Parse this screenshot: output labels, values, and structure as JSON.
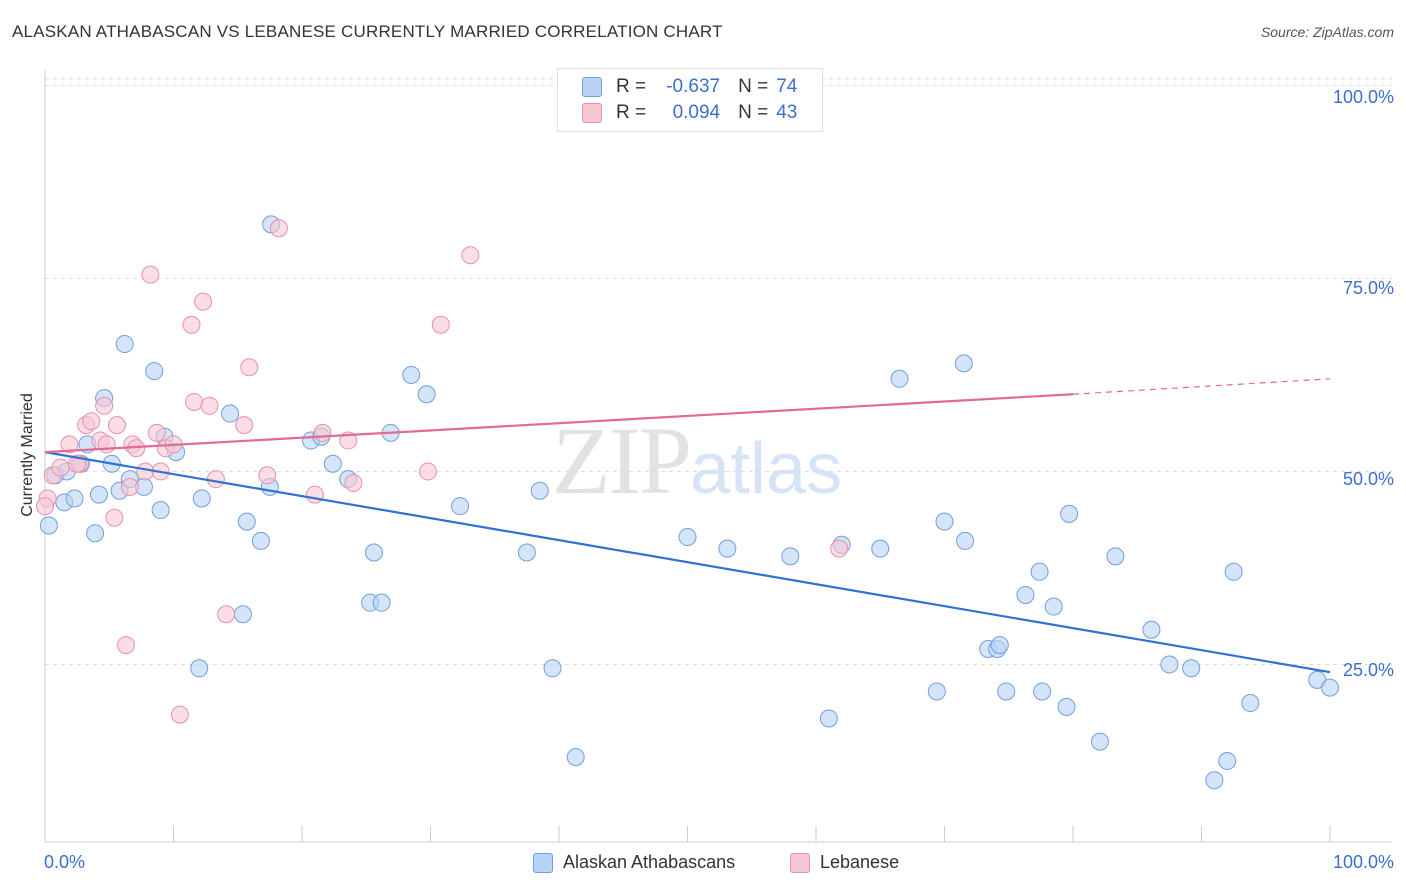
{
  "header": {
    "title": "ALASKAN ATHABASCAN VS LEBANESE CURRENTLY MARRIED CORRELATION CHART",
    "source": "Source: ZipAtlas.com"
  },
  "watermark": {
    "part1": "ZIP",
    "part2": "atlas"
  },
  "legend": {
    "rows": [
      {
        "r_label": "R =",
        "r_value": "-0.637",
        "n_label": "N =",
        "n_value": "74"
      },
      {
        "r_label": "R =",
        "r_value": "0.094",
        "n_label": "N =",
        "n_value": "43"
      }
    ]
  },
  "colors": {
    "blue_fill": "#b8d3f5",
    "blue_stroke": "#6f9fdf",
    "blue_line": "#2f72d4",
    "pink_fill": "#f7c6d4",
    "pink_stroke": "#e890ae",
    "pink_line": "#e06b93",
    "tick_text": "#3b6fcf",
    "grid": "#dcdcdc"
  },
  "chart_data": {
    "type": "scatter",
    "title": "ALASKAN ATHABASCAN VS LEBANESE CURRENTLY MARRIED CORRELATION CHART",
    "xlabel": "",
    "ylabel": "Currently Married",
    "xlim": [
      0,
      100
    ],
    "ylim": [
      2,
      102
    ],
    "x_tick_labels": [
      "0.0%",
      "100.0%"
    ],
    "y_ticks": [
      25,
      50,
      75,
      100
    ],
    "y_tick_labels": [
      "25.0%",
      "50.0%",
      "75.0%",
      "100.0%"
    ],
    "grid": true,
    "legend_position": "top-center",
    "series": [
      {
        "name": "Alaskan Athabascans",
        "r": -0.637,
        "n": 74,
        "trend": {
          "x0": 0,
          "y0": 52.5,
          "x1": 100,
          "y1": 24.0
        },
        "points": [
          [
            0.3,
            43
          ],
          [
            0.8,
            49.5
          ],
          [
            1.5,
            46
          ],
          [
            1.7,
            50
          ],
          [
            2.3,
            46.5
          ],
          [
            2.8,
            51
          ],
          [
            3.3,
            53.5
          ],
          [
            3.9,
            42
          ],
          [
            4.2,
            47
          ],
          [
            4.6,
            59.5
          ],
          [
            5.2,
            51
          ],
          [
            5.8,
            47.5
          ],
          [
            6.2,
            66.5
          ],
          [
            6.6,
            49
          ],
          [
            7.7,
            48
          ],
          [
            8.5,
            63
          ],
          [
            9.0,
            45
          ],
          [
            9.3,
            54.5
          ],
          [
            10.2,
            52.5
          ],
          [
            12.0,
            24.5
          ],
          [
            12.2,
            46.5
          ],
          [
            14.4,
            57.5
          ],
          [
            15.4,
            31.5
          ],
          [
            15.7,
            43.5
          ],
          [
            16.8,
            41
          ],
          [
            17.5,
            48
          ],
          [
            17.6,
            82
          ],
          [
            20.7,
            54
          ],
          [
            21.5,
            54.5
          ],
          [
            22.4,
            51
          ],
          [
            23.6,
            49
          ],
          [
            25.3,
            33
          ],
          [
            25.6,
            39.5
          ],
          [
            26.2,
            33
          ],
          [
            26.9,
            55
          ],
          [
            28.5,
            62.5
          ],
          [
            29.7,
            60
          ],
          [
            32.3,
            45.5
          ],
          [
            37.5,
            39.5
          ],
          [
            38.5,
            47.5
          ],
          [
            39.5,
            24.5
          ],
          [
            41.3,
            13
          ],
          [
            50.0,
            41.5
          ],
          [
            53.1,
            40
          ],
          [
            58.0,
            39
          ],
          [
            61.0,
            18
          ],
          [
            62.0,
            40.5
          ],
          [
            65.0,
            40
          ],
          [
            66.5,
            62
          ],
          [
            69.4,
            21.5
          ],
          [
            70.0,
            43.5
          ],
          [
            71.5,
            64
          ],
          [
            71.6,
            41
          ],
          [
            73.4,
            27
          ],
          [
            74.1,
            27
          ],
          [
            74.3,
            27.5
          ],
          [
            74.8,
            21.5
          ],
          [
            76.3,
            34
          ],
          [
            77.4,
            37
          ],
          [
            77.6,
            21.5
          ],
          [
            78.5,
            32.5
          ],
          [
            79.5,
            19.5
          ],
          [
            79.7,
            44.5
          ],
          [
            82.1,
            15
          ],
          [
            83.3,
            39
          ],
          [
            86.1,
            29.5
          ],
          [
            87.5,
            25
          ],
          [
            89.2,
            24.5
          ],
          [
            91.0,
            10
          ],
          [
            92.0,
            12.5
          ],
          [
            92.5,
            37
          ],
          [
            93.8,
            20
          ],
          [
            99.0,
            23
          ],
          [
            100.0,
            22
          ]
        ]
      },
      {
        "name": "Lebanese",
        "r": 0.094,
        "n": 43,
        "trend": {
          "x0": 0,
          "y0": 52.5,
          "x1": 80,
          "y1": 60.0,
          "dash_x1": 100,
          "dash_y1": 62.0
        },
        "points": [
          [
            0.2,
            46.5
          ],
          [
            0.6,
            49.5
          ],
          [
            1.2,
            50.5
          ],
          [
            1.9,
            53.5
          ],
          [
            2.7,
            51
          ],
          [
            3.2,
            56
          ],
          [
            3.6,
            56.5
          ],
          [
            4.3,
            54
          ],
          [
            4.6,
            58.5
          ],
          [
            4.8,
            53.5
          ],
          [
            5.4,
            44
          ],
          [
            5.6,
            56
          ],
          [
            6.3,
            27.5
          ],
          [
            6.6,
            48
          ],
          [
            6.8,
            53.5
          ],
          [
            7.1,
            53
          ],
          [
            7.8,
            50
          ],
          [
            8.2,
            75.5
          ],
          [
            8.7,
            55
          ],
          [
            9.0,
            50
          ],
          [
            9.4,
            53
          ],
          [
            10.0,
            53.5
          ],
          [
            10.5,
            18.5
          ],
          [
            11.4,
            69
          ],
          [
            11.6,
            59
          ],
          [
            12.3,
            72
          ],
          [
            12.8,
            58.5
          ],
          [
            13.3,
            49
          ],
          [
            14.1,
            31.5
          ],
          [
            15.5,
            56
          ],
          [
            15.9,
            63.5
          ],
          [
            17.3,
            49.5
          ],
          [
            18.2,
            81.5
          ],
          [
            21.0,
            47
          ],
          [
            21.6,
            55
          ],
          [
            23.6,
            54
          ],
          [
            24.0,
            48.5
          ],
          [
            29.8,
            50
          ],
          [
            30.8,
            69
          ],
          [
            33.1,
            78
          ],
          [
            61.8,
            40
          ],
          [
            0.0,
            45.5
          ],
          [
            2.5,
            51
          ]
        ]
      }
    ]
  },
  "bottom_legend": {
    "items": [
      {
        "label": "Alaskan Athabascans"
      },
      {
        "label": "Lebanese"
      }
    ]
  }
}
